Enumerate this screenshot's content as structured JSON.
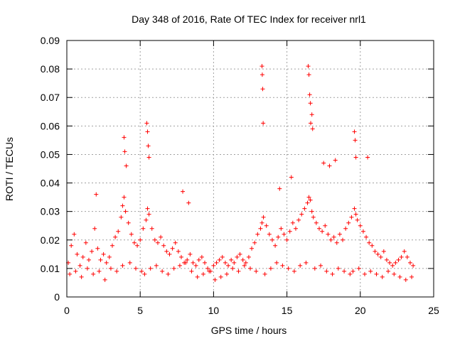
{
  "chart_data": {
    "type": "scatter",
    "title": "Day 348 of 2016, Rate Of TEC Index for receiver nrl1",
    "xlabel": "GPS time / hours",
    "ylabel": "ROTI / TECUs",
    "xlim": [
      0,
      25
    ],
    "ylim": [
      0,
      0.09
    ],
    "grid": true,
    "marker": "+",
    "color": "#ff0000",
    "x_ticks": [
      0,
      5,
      10,
      15,
      20,
      25
    ],
    "x_tick_labels": [
      "0",
      "5",
      "10",
      "15",
      "20",
      "25"
    ],
    "y_ticks": [
      0,
      0.01,
      0.02,
      0.03,
      0.04,
      0.05,
      0.06,
      0.07,
      0.08,
      0.09
    ],
    "y_tick_labels": [
      "0",
      "0.01",
      "0.02",
      "0.03",
      "0.04",
      "0.05",
      "0.06",
      "0.07",
      "0.08",
      "0.09"
    ],
    "series": [
      {
        "name": "nrl1",
        "x": [
          0.1,
          0.3,
          0.5,
          0.7,
          0.9,
          1.1,
          1.3,
          1.5,
          1.7,
          1.9,
          2.1,
          2.3,
          2.5,
          2.7,
          2.9,
          3.1,
          3.3,
          3.5,
          3.7,
          3.8,
          3.9,
          4.0,
          4.2,
          4.4,
          4.6,
          4.8,
          5.0,
          5.2,
          5.4,
          5.5,
          5.6,
          5.8,
          6.0,
          6.2,
          6.4,
          6.6,
          6.8,
          7.0,
          7.2,
          7.4,
          7.6,
          7.8,
          8.0,
          8.2,
          8.4,
          8.6,
          8.8,
          9.0,
          9.2,
          9.4,
          9.6,
          9.8,
          10.0,
          10.2,
          10.4,
          10.6,
          10.8,
          11.0,
          11.2,
          11.4,
          11.6,
          11.8,
          12.0,
          12.2,
          12.4,
          12.6,
          12.8,
          13.0,
          13.2,
          13.3,
          13.4,
          13.6,
          13.8,
          14.0,
          14.2,
          14.4,
          14.6,
          14.8,
          15.0,
          15.2,
          15.4,
          15.6,
          15.8,
          16.0,
          16.2,
          16.4,
          16.5,
          16.6,
          16.7,
          16.8,
          17.0,
          17.2,
          17.4,
          17.6,
          17.8,
          18.0,
          18.2,
          18.4,
          18.6,
          18.8,
          19.0,
          19.2,
          19.4,
          19.6,
          19.7,
          19.8,
          20.0,
          20.2,
          20.4,
          20.6,
          20.8,
          21.0,
          21.2,
          21.4,
          21.6,
          21.8,
          22.0,
          22.2,
          22.4,
          22.6,
          22.8,
          23.0,
          23.2,
          23.4,
          23.6,
          0.2,
          0.6,
          1.0,
          1.4,
          1.8,
          2.2,
          2.6,
          3.0,
          3.4,
          3.8,
          4.3,
          4.7,
          5.1,
          5.3,
          5.7,
          6.1,
          6.5,
          6.9,
          7.3,
          7.7,
          8.1,
          8.5,
          8.9,
          9.3,
          9.7,
          10.1,
          10.5,
          10.9,
          11.3,
          11.7,
          12.1,
          12.5,
          12.9,
          13.5,
          13.9,
          14.3,
          14.7,
          15.1,
          15.5,
          15.9,
          16.3,
          16.9,
          17.3,
          17.7,
          18.1,
          18.5,
          18.9,
          19.3,
          19.5,
          19.9,
          20.3,
          20.7,
          21.1,
          21.5,
          21.9,
          22.3,
          22.7,
          23.1,
          23.5,
          3.9,
          3.95,
          4.05,
          5.45,
          5.5,
          5.55,
          5.6,
          13.3,
          13.32,
          13.35,
          13.38,
          16.45,
          16.5,
          16.55,
          16.6,
          16.62,
          16.7,
          16.75,
          19.6,
          19.65,
          19.7,
          17.5,
          17.9,
          18.3,
          20.5,
          15.3,
          14.5,
          2.0,
          7.9,
          8.3
        ],
        "y": [
          0.012,
          0.018,
          0.022,
          0.015,
          0.011,
          0.014,
          0.019,
          0.013,
          0.016,
          0.024,
          0.017,
          0.013,
          0.015,
          0.012,
          0.014,
          0.018,
          0.021,
          0.023,
          0.028,
          0.032,
          0.035,
          0.03,
          0.026,
          0.022,
          0.019,
          0.018,
          0.02,
          0.024,
          0.027,
          0.031,
          0.029,
          0.024,
          0.02,
          0.019,
          0.021,
          0.018,
          0.016,
          0.015,
          0.017,
          0.019,
          0.016,
          0.014,
          0.012,
          0.013,
          0.015,
          0.012,
          0.011,
          0.013,
          0.014,
          0.012,
          0.01,
          0.009,
          0.011,
          0.012,
          0.013,
          0.014,
          0.012,
          0.011,
          0.013,
          0.012,
          0.014,
          0.015,
          0.013,
          0.012,
          0.014,
          0.017,
          0.019,
          0.022,
          0.024,
          0.026,
          0.028,
          0.025,
          0.022,
          0.02,
          0.018,
          0.021,
          0.024,
          0.022,
          0.02,
          0.023,
          0.026,
          0.024,
          0.027,
          0.029,
          0.031,
          0.033,
          0.035,
          0.034,
          0.03,
          0.028,
          0.026,
          0.024,
          0.023,
          0.025,
          0.022,
          0.02,
          0.021,
          0.019,
          0.022,
          0.02,
          0.024,
          0.026,
          0.028,
          0.031,
          0.029,
          0.027,
          0.025,
          0.023,
          0.021,
          0.019,
          0.018,
          0.016,
          0.015,
          0.014,
          0.016,
          0.013,
          0.012,
          0.011,
          0.012,
          0.013,
          0.014,
          0.016,
          0.014,
          0.012,
          0.011,
          0.008,
          0.009,
          0.007,
          0.01,
          0.008,
          0.009,
          0.006,
          0.01,
          0.009,
          0.011,
          0.012,
          0.01,
          0.009,
          0.008,
          0.01,
          0.011,
          0.009,
          0.008,
          0.01,
          0.011,
          0.012,
          0.009,
          0.007,
          0.008,
          0.009,
          0.006,
          0.007,
          0.008,
          0.01,
          0.009,
          0.011,
          0.01,
          0.009,
          0.008,
          0.01,
          0.012,
          0.011,
          0.01,
          0.009,
          0.011,
          0.012,
          0.01,
          0.011,
          0.009,
          0.008,
          0.01,
          0.009,
          0.008,
          0.009,
          0.01,
          0.008,
          0.009,
          0.008,
          0.007,
          0.009,
          0.008,
          0.007,
          0.006,
          0.007,
          0.056,
          0.051,
          0.046,
          0.061,
          0.058,
          0.053,
          0.049,
          0.081,
          0.078,
          0.073,
          0.061,
          0.081,
          0.078,
          0.071,
          0.068,
          0.061,
          0.064,
          0.059,
          0.058,
          0.055,
          0.049,
          0.047,
          0.046,
          0.048,
          0.049,
          0.042,
          0.038,
          0.036,
          0.037,
          0.033
        ]
      }
    ]
  }
}
